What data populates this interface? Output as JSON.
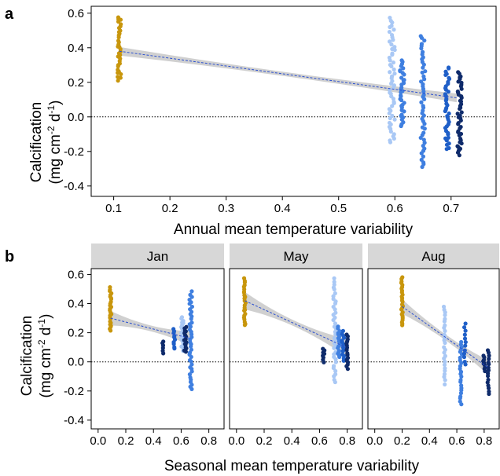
{
  "panels": {
    "a": {
      "letter": "a"
    },
    "b": {
      "letter": "b"
    }
  },
  "colors": {
    "site_gold": "#c8960c",
    "site_light_blue": "#a9c8f5",
    "site_mid_blue": "#3f7fe0",
    "site_blue": "#1f5fc8",
    "site_dark_navy": "#0f2b6b",
    "ci_band": "#c8c8c8",
    "fit_line": "#2a4fd0",
    "strip_bg": "#d7d7d7"
  },
  "chart_data": [
    {
      "panel": "a",
      "type": "scatter",
      "ylabel": [
        "Calcification",
        "(mg cm-2 d-1)"
      ],
      "xlabel": "Annual mean temperature variability",
      "xlim": [
        0.06,
        0.78
      ],
      "ylim": [
        -0.46,
        0.64
      ],
      "xticks": [
        "0.1",
        "0.2",
        "0.3",
        "0.4",
        "0.5",
        "0.6",
        "0.7"
      ],
      "yticks": [
        "0.6",
        "0.4",
        "0.2",
        "0.0",
        "-0.2",
        "-0.4"
      ],
      "reference_line_y": 0.0,
      "fit": {
        "x": [
          0.11,
          0.71
        ],
        "y": [
          0.38,
          0.11
        ],
        "ci_halfwidth_ends": 0.025,
        "ci_halfwidth_mid": 0.012
      },
      "series": [
        {
          "color": "site_gold",
          "x": [
            0.11
          ],
          "y_range": [
            0.21,
            0.58
          ],
          "n": 34,
          "width": 0.003
        },
        {
          "color": "site_light_blue",
          "x": [
            0.595
          ],
          "y_range": [
            -0.15,
            0.57
          ],
          "n": 55,
          "width": 0.005
        },
        {
          "color": "site_mid_blue",
          "x": [
            0.613
          ],
          "y_range": [
            -0.05,
            0.33
          ],
          "n": 35,
          "width": 0.004
        },
        {
          "color": "site_mid_blue",
          "x": [
            0.65
          ],
          "y_range": [
            -0.29,
            0.47
          ],
          "n": 50,
          "width": 0.004
        },
        {
          "color": "site_blue",
          "x": [
            0.693
          ],
          "y_range": [
            -0.19,
            0.29
          ],
          "n": 40,
          "width": 0.004
        },
        {
          "color": "site_dark_navy",
          "x": [
            0.715
          ],
          "y_range": [
            -0.22,
            0.26
          ],
          "n": 45,
          "width": 0.004
        }
      ]
    },
    {
      "panel": "b",
      "type": "scatter",
      "facets": [
        "Jan",
        "May",
        "Aug"
      ],
      "ylabel": [
        "Calcification",
        "(mg cm-2 d-1)"
      ],
      "xlabel": "Seasonal mean temperature variability",
      "xlim": [
        -0.05,
        0.91
      ],
      "ylim": [
        -0.46,
        0.64
      ],
      "xticks": [
        "0.0",
        "0.2",
        "0.4",
        "0.6",
        "0.8"
      ],
      "yticks": [
        "0.6",
        "0.4",
        "0.2",
        "0.0",
        "-0.2",
        "-0.4"
      ],
      "reference_line_y": 0.0,
      "facet_data": [
        {
          "name": "Jan",
          "fit": {
            "x": [
              0.09,
              0.67
            ],
            "y": [
              0.3,
              0.16
            ],
            "ci_halfwidth_ends": 0.05,
            "ci_halfwidth_mid": 0.02
          },
          "series": [
            {
              "color": "site_gold",
              "x": [
                0.09
              ],
              "y_range": [
                0.21,
                0.51
              ],
              "n": 26,
              "width": 0.006
            },
            {
              "color": "site_dark_navy",
              "x": [
                0.47
              ],
              "y_range": [
                0.06,
                0.14
              ],
              "n": 6,
              "width": 0.006
            },
            {
              "color": "site_blue",
              "x": [
                0.55
              ],
              "y_range": [
                0.09,
                0.23
              ],
              "n": 10,
              "width": 0.006
            },
            {
              "color": "site_light_blue",
              "x": [
                0.61
              ],
              "y_range": [
                0.08,
                0.31
              ],
              "n": 20,
              "width": 0.01
            },
            {
              "color": "site_dark_navy",
              "x": [
                0.63
              ],
              "y_range": [
                0.07,
                0.24
              ],
              "n": 16,
              "width": 0.008
            },
            {
              "color": "site_mid_blue",
              "x": [
                0.67
              ],
              "y_range": [
                -0.19,
                0.48
              ],
              "n": 40,
              "width": 0.01
            }
          ]
        },
        {
          "name": "May",
          "fit": {
            "x": [
              0.06,
              0.79
            ],
            "y": [
              0.42,
              0.1
            ],
            "ci_halfwidth_ends": 0.06,
            "ci_halfwidth_mid": 0.02
          },
          "series": [
            {
              "color": "site_gold",
              "x": [
                0.06
              ],
              "y_range": [
                0.25,
                0.57
              ],
              "n": 24,
              "width": 0.006
            },
            {
              "color": "site_dark_navy",
              "x": [
                0.63
              ],
              "y_range": [
                0.0,
                0.09
              ],
              "n": 8,
              "width": 0.006
            },
            {
              "color": "site_light_blue",
              "x": [
                0.71
              ],
              "y_range": [
                -0.14,
                0.57
              ],
              "n": 38,
              "width": 0.01
            },
            {
              "color": "site_mid_blue",
              "x": [
                0.74
              ],
              "y_range": [
                0.03,
                0.24
              ],
              "n": 18,
              "width": 0.008
            },
            {
              "color": "site_blue",
              "x": [
                0.77
              ],
              "y_range": [
                0.01,
                0.21
              ],
              "n": 14,
              "width": 0.008
            },
            {
              "color": "site_dark_navy",
              "x": [
                0.8
              ],
              "y_range": [
                -0.05,
                0.19
              ],
              "n": 16,
              "width": 0.006
            }
          ]
        },
        {
          "name": "Aug",
          "fit": {
            "x": [
              0.2,
              0.83
            ],
            "y": [
              0.38,
              -0.04
            ],
            "ci_halfwidth_ends": 0.05,
            "ci_halfwidth_mid": 0.02
          },
          "series": [
            {
              "color": "site_gold",
              "x": [
                0.2
              ],
              "y_range": [
                0.25,
                0.58
              ],
              "n": 26,
              "width": 0.006
            },
            {
              "color": "site_light_blue",
              "x": [
                0.51
              ],
              "y_range": [
                -0.15,
                0.38
              ],
              "n": 26,
              "width": 0.006
            },
            {
              "color": "site_mid_blue",
              "x": [
                0.63
              ],
              "y_range": [
                -0.29,
                0.14
              ],
              "n": 24,
              "width": 0.008
            },
            {
              "color": "site_blue",
              "x": [
                0.66
              ],
              "y_range": [
                -0.02,
                0.26
              ],
              "n": 12,
              "width": 0.006
            },
            {
              "color": "site_dark_navy",
              "x": [
                0.8
              ],
              "y_range": [
                -0.06,
                0.04
              ],
              "n": 10,
              "width": 0.008
            },
            {
              "color": "site_dark_navy",
              "x": [
                0.83
              ],
              "y_range": [
                -0.22,
                0.08
              ],
              "n": 16,
              "width": 0.006
            }
          ]
        }
      ]
    }
  ]
}
